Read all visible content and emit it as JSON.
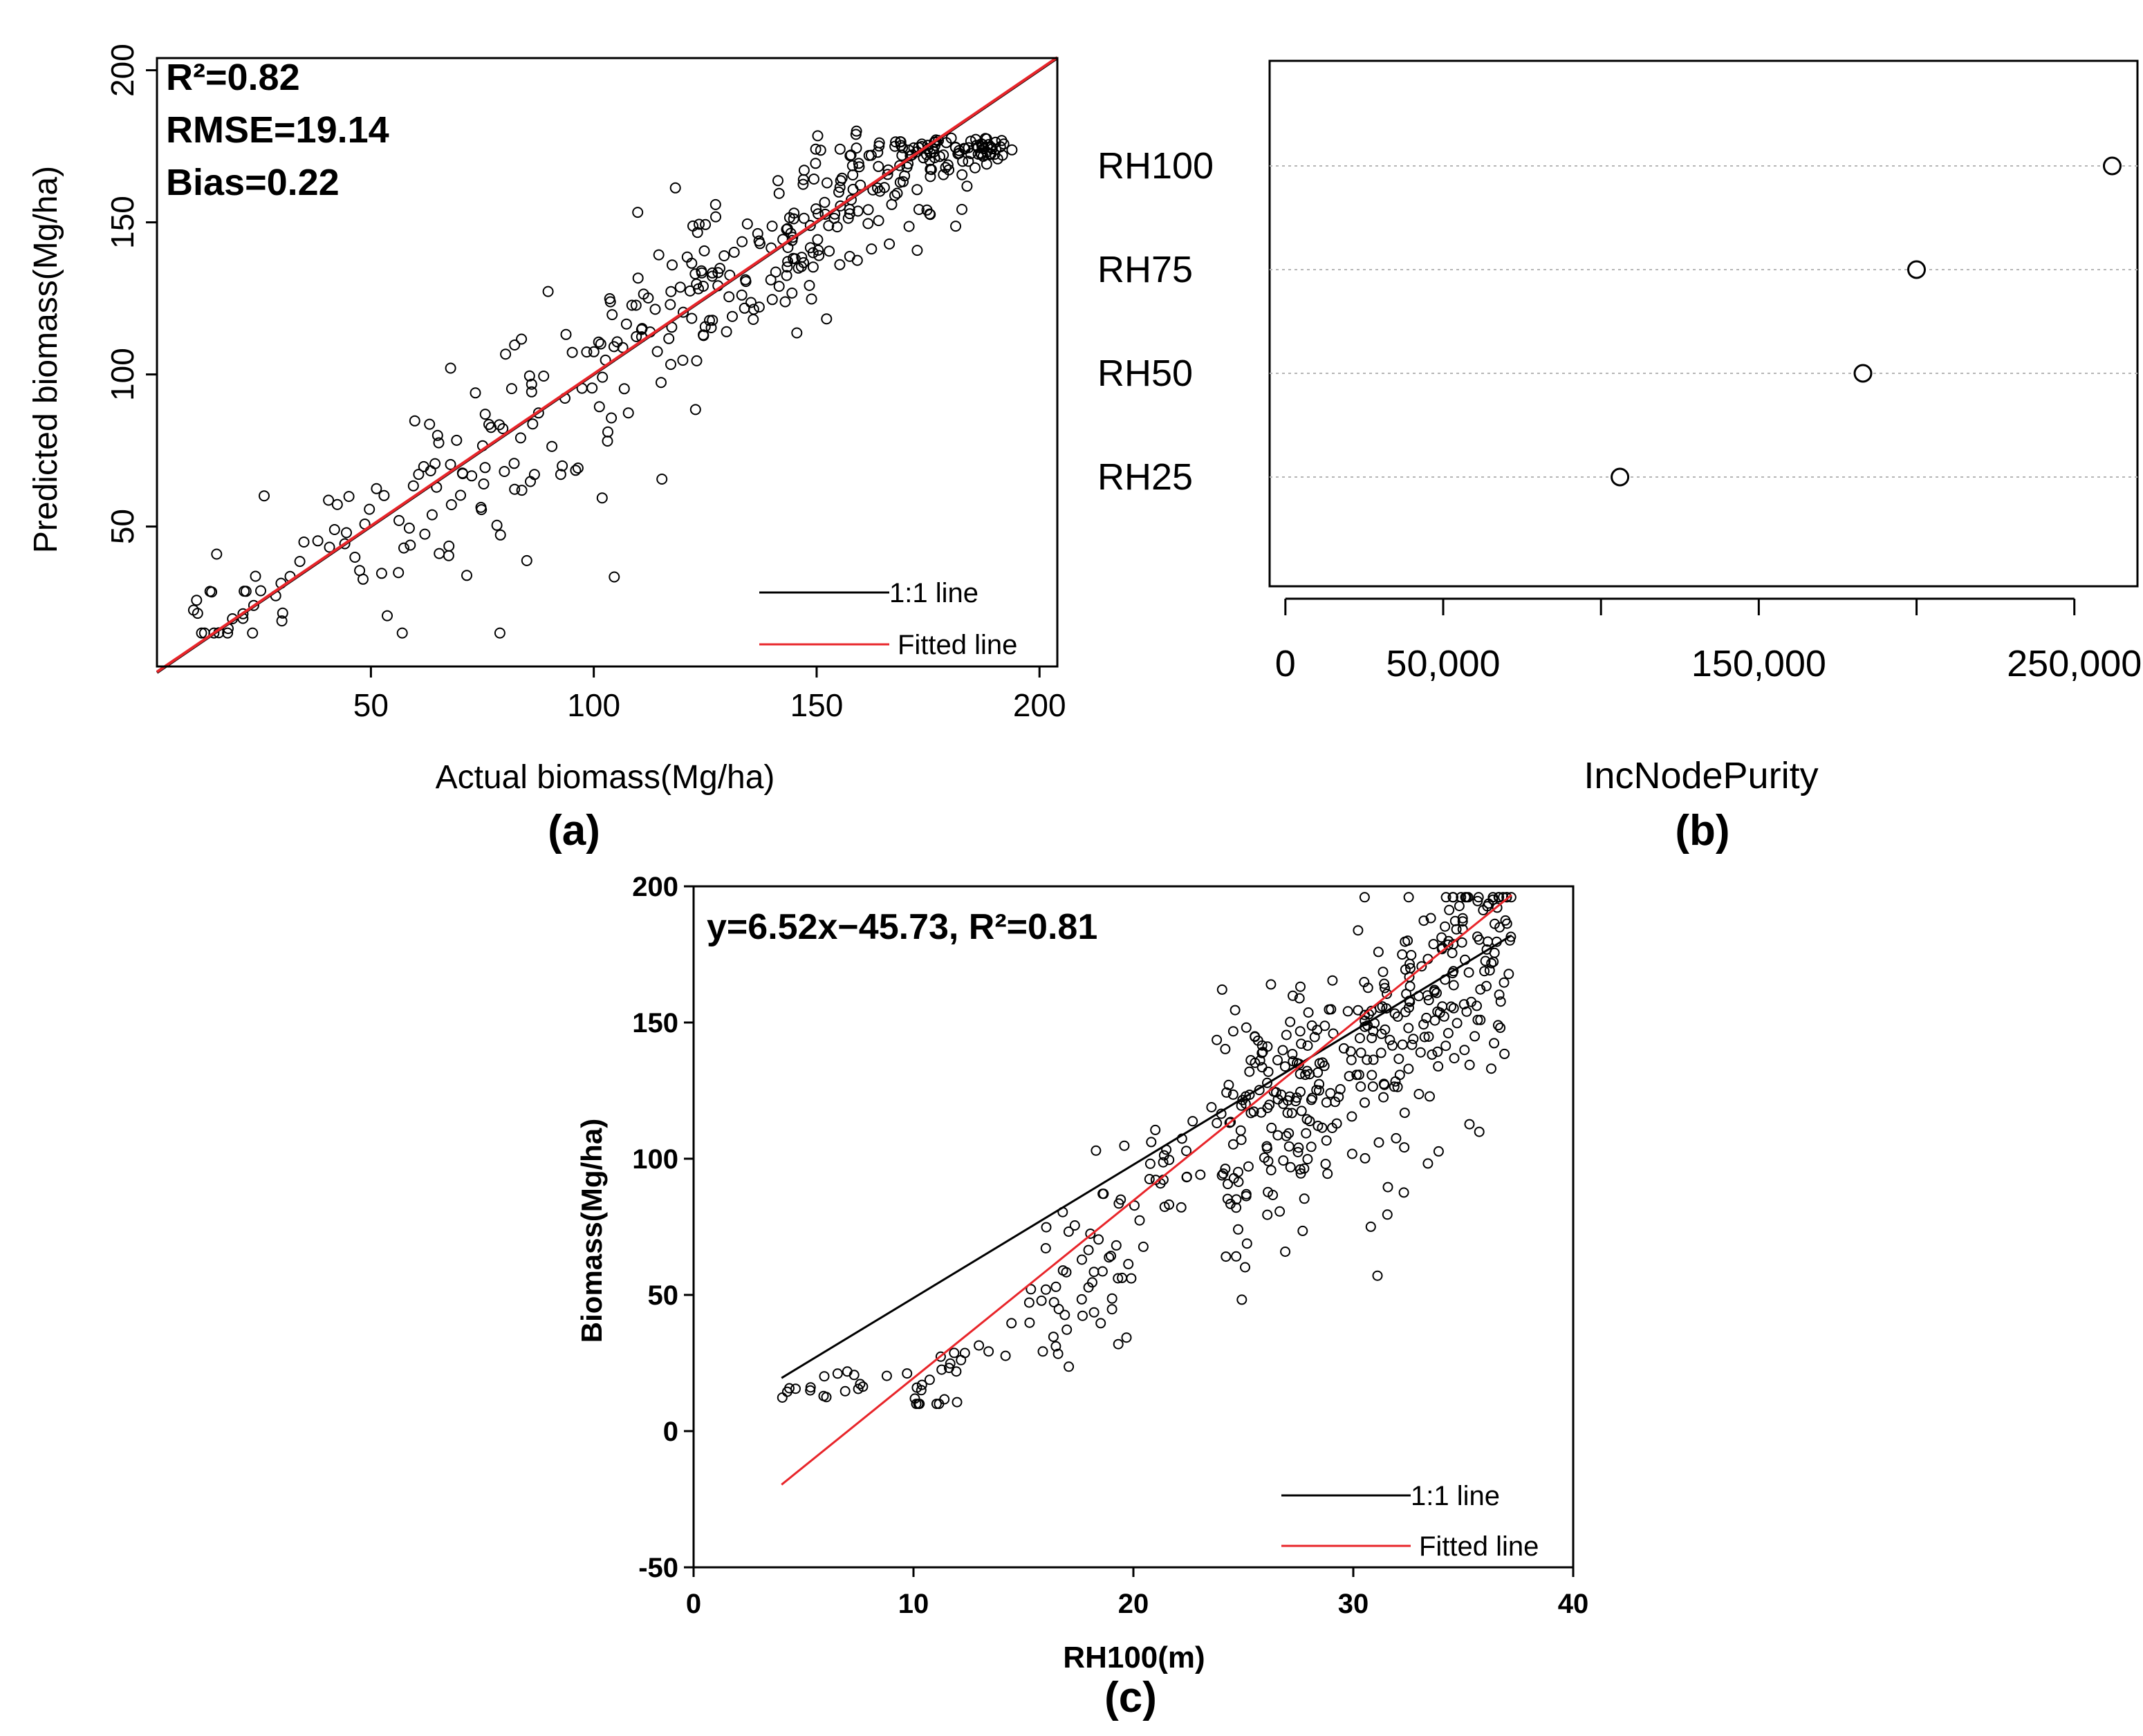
{
  "chart_data": [
    {
      "id": "a",
      "type": "scatter",
      "panel_label": "(a)",
      "xlabel": "Actual biomass(Mg/ha)",
      "ylabel": "Predicted biomass(Mg/ha)",
      "xlim": [
        2,
        204
      ],
      "ylim": [
        4,
        204
      ],
      "xticks": [
        50,
        100,
        150,
        200
      ],
      "yticks": [
        50,
        100,
        150,
        200
      ],
      "annotations": [
        "R²=0.82",
        "RMSE=19.14",
        "Bias=0.22"
      ],
      "legend": {
        "position": "bottom-right",
        "entries": [
          "1:1 line",
          "Fitted line"
        ]
      },
      "lines": [
        {
          "name": "1:1 line",
          "color": "#000000",
          "slope": 1.0,
          "intercept": 0.0
        },
        {
          "name": "Fitted line",
          "color": "#e8252a",
          "slope": 1.0,
          "intercept": 0.22
        }
      ],
      "n_points": 420,
      "points_note": "Dense scatter of ~420 observations clustered around the 1:1 line, densest at actual 150-190 / predicted 140-180."
    },
    {
      "id": "b",
      "type": "dot",
      "panel_label": "(b)",
      "xlabel": "IncNodePurity",
      "categories": [
        "RH100",
        "RH75",
        "RH50",
        "RH25"
      ],
      "values": [
        262000,
        200000,
        183000,
        106000
      ],
      "xlim": [
        -5000,
        270000
      ],
      "xticks": [
        0,
        50000,
        100000,
        150000,
        200000,
        250000
      ],
      "xtick_labels": [
        "0",
        "50,000",
        "",
        "150,000",
        "",
        "250,000"
      ]
    },
    {
      "id": "c",
      "type": "scatter",
      "panel_label": "(c)",
      "xlabel": "RH100(m)",
      "ylabel": "Biomass(Mg/ha)",
      "xlim": [
        0,
        40
      ],
      "ylim": [
        -50,
        200
      ],
      "xticks": [
        0,
        10,
        20,
        30,
        40
      ],
      "yticks": [
        -50,
        0,
        50,
        100,
        150,
        200
      ],
      "annotation": "y=6.52x−45.73, R²=0.81",
      "legend": {
        "position": "bottom-right",
        "entries": [
          "1:1 line",
          "Fitted line"
        ]
      },
      "lines": [
        {
          "name": "1:1 line",
          "color": "#000000",
          "x": [
            4,
            37.2
          ],
          "y": [
            19.5,
            182
          ]
        },
        {
          "name": "Fitted line",
          "color": "#e8252a",
          "slope": 6.52,
          "intercept": -45.73,
          "x": [
            4,
            37.2
          ]
        }
      ],
      "n_points": 470,
      "points_note": "Scatter of ~470 observations; sparse at RH100 4-20 m (biomass 10-90), dense at 25-36 m (biomass 110-190)."
    }
  ]
}
